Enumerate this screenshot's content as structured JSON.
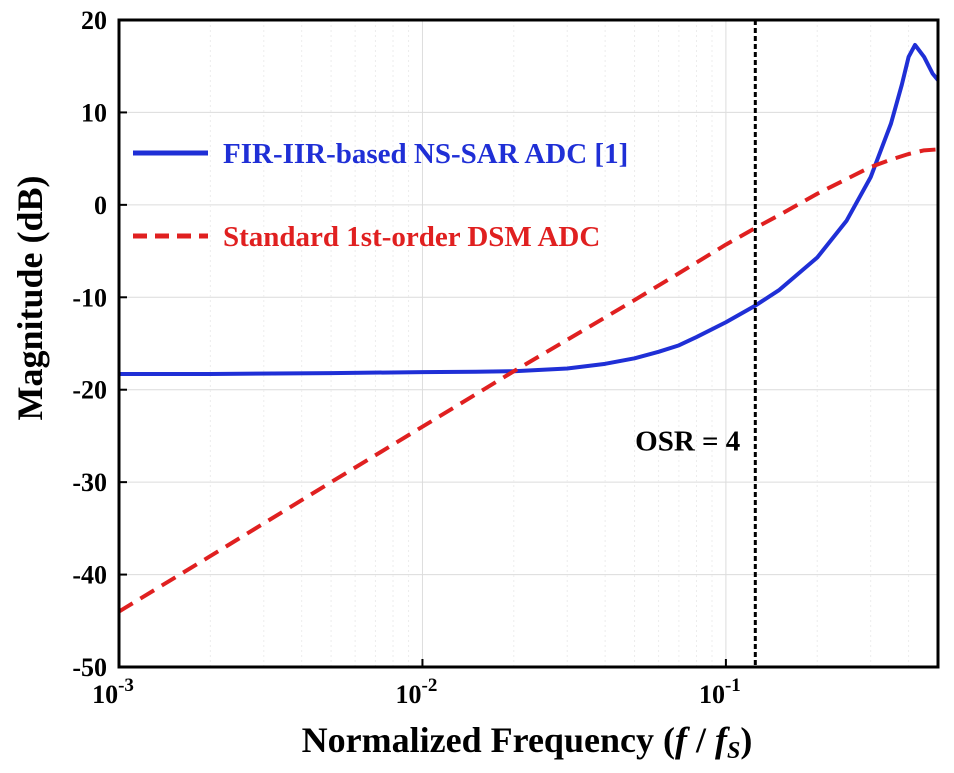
{
  "chart_data": {
    "type": "line",
    "title": "",
    "xlabel": "Normalized Frequency (",
    "xlabel_f": "f",
    "xlabel_slash": " / ",
    "xlabel_fs": "f",
    "xlabel_sub": "S",
    "xlabel_close": ")",
    "ylabel": "Magnitude (dB)",
    "xscale": "log",
    "xlim": [
      0.001,
      0.5
    ],
    "ylim": [
      -50,
      20
    ],
    "grid": true,
    "legend_position": "top-left",
    "x_ticks": [
      {
        "value": 0.001,
        "base": "10",
        "exp": "-3"
      },
      {
        "value": 0.01,
        "base": "10",
        "exp": "-2"
      },
      {
        "value": 0.1,
        "base": "10",
        "exp": "-1"
      }
    ],
    "y_ticks": [
      20,
      10,
      0,
      -10,
      -20,
      -30,
      -40,
      -50
    ],
    "series": [
      {
        "name": "FIR-IIR-based NS-SAR ADC [1]",
        "color": "#1f2fd6",
        "style": "solid",
        "x": [
          0.001,
          0.002,
          0.005,
          0.01,
          0.015,
          0.02,
          0.03,
          0.04,
          0.05,
          0.06,
          0.07,
          0.08,
          0.1,
          0.125,
          0.15,
          0.2,
          0.25,
          0.3,
          0.35,
          0.38,
          0.4,
          0.42,
          0.45,
          0.48,
          0.5
        ],
        "y": [
          -18.3,
          -18.3,
          -18.2,
          -18.1,
          -18.05,
          -18.0,
          -17.7,
          -17.2,
          -16.6,
          -15.9,
          -15.2,
          -14.3,
          -12.7,
          -10.9,
          -9.2,
          -5.7,
          -1.7,
          3.0,
          8.8,
          13.0,
          16.0,
          17.3,
          16.0,
          14.2,
          13.5
        ]
      },
      {
        "name": "Standard 1st-order DSM ADC",
        "color": "#e02020",
        "style": "dashed",
        "x": [
          0.001,
          0.002,
          0.005,
          0.01,
          0.02,
          0.03,
          0.05,
          0.07,
          0.1,
          0.125,
          0.15,
          0.2,
          0.25,
          0.3,
          0.35,
          0.4,
          0.45,
          0.5
        ],
        "y": [
          -44.0,
          -38.0,
          -30.0,
          -24.0,
          -18.0,
          -14.6,
          -10.3,
          -7.4,
          -4.3,
          -2.5,
          -1.1,
          1.2,
          2.8,
          4.1,
          4.9,
          5.5,
          5.9,
          6.0
        ]
      }
    ],
    "annotations": [
      {
        "text": "OSR = 4",
        "x": 0.125,
        "y": -25.5
      }
    ],
    "vline": {
      "x": 0.125,
      "style": "dotted",
      "color": "#000000"
    }
  }
}
